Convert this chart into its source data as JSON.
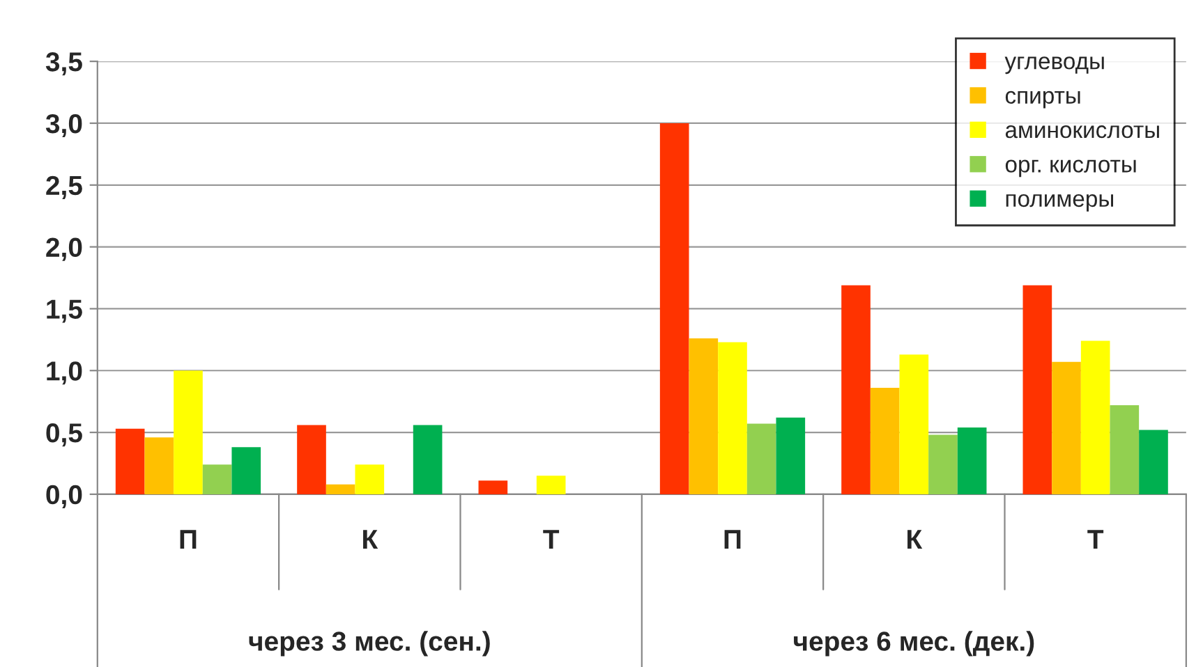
{
  "chart_data": {
    "type": "bar",
    "categories": [
      "П",
      "К",
      "Т",
      "П",
      "К",
      "Т"
    ],
    "series": [
      {
        "name": "углеводы",
        "color": "#ff3300",
        "values": [
          0.53,
          0.56,
          0.11,
          3.0,
          1.69,
          1.69
        ]
      },
      {
        "name": "спирты",
        "color": "#ffc000",
        "values": [
          0.46,
          0.08,
          null,
          1.26,
          0.86,
          1.07
        ]
      },
      {
        "name": "аминокислоты",
        "color": "#ffff00",
        "values": [
          1.0,
          0.24,
          0.15,
          1.23,
          1.13,
          1.24
        ]
      },
      {
        "name": "орг. кислоты",
        "color": "#92d050",
        "values": [
          0.24,
          null,
          null,
          0.57,
          0.48,
          0.72
        ]
      },
      {
        "name": "полимеры",
        "color": "#00b050",
        "values": [
          0.38,
          0.56,
          null,
          0.62,
          0.54,
          0.52
        ]
      }
    ],
    "ylim": [
      0,
      3.5
    ],
    "yticks": [
      {
        "value": 0,
        "label": "0,0"
      },
      {
        "value": 0.5,
        "label": "0,5"
      },
      {
        "value": 1,
        "label": "1,0"
      },
      {
        "value": 1.5,
        "label": "1,5"
      },
      {
        "value": 2,
        "label": "2,0"
      },
      {
        "value": 2.5,
        "label": "2,5"
      },
      {
        "value": 3,
        "label": "3,0"
      },
      {
        "value": 3.5,
        "label": "3,5"
      }
    ],
    "annotations": [
      "через 3 мес. (сен.)",
      "через 6 мес. (дек.)"
    ],
    "grid": "y",
    "legend": "top right"
  }
}
